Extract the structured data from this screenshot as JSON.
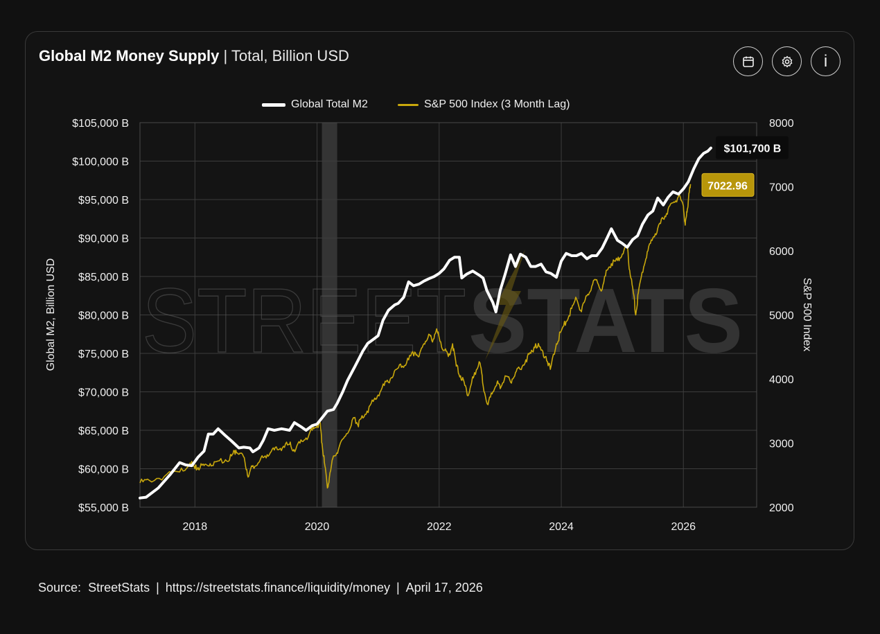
{
  "header": {
    "title_main": "Global M2 Money Supply",
    "title_separator": "|",
    "title_sub": "Total, Billion USD"
  },
  "toolbar": {
    "calendar_icon": "calendar-icon",
    "settings_icon": "gear-icon",
    "info_icon": "info-icon",
    "info_glyph": "i"
  },
  "legend": {
    "m2_label": "Global Total M2",
    "spx_label": "S&P 500 Index (3 Month Lag)"
  },
  "colors": {
    "m2": "#ffffff",
    "spx": "#c9a80c",
    "spx_badge": "#b8960a",
    "grid": "#3d3d3d",
    "recession": "#3a3a3a",
    "watermark": "#5a5a5a"
  },
  "watermark": {
    "left": "STREET",
    "right": "STATS"
  },
  "chart_data": {
    "type": "line",
    "title": "Global M2 Money Supply | Total, Billion USD",
    "xlabel": "",
    "ylabel_left": "Global M2, Billion USD",
    "ylabel_right": "S&P 500 Index",
    "x_ticks": [
      "2018",
      "2020",
      "2022",
      "2024",
      "2026"
    ],
    "x_range": [
      2017.1,
      2027.2
    ],
    "y_left_range": [
      55000,
      105000
    ],
    "y_left_ticks": [
      "$105,000 B",
      "$100,000 B",
      "$95,000 B",
      "$90,000 B",
      "$85,000 B",
      "$80,000 B",
      "$75,000 B",
      "$70,000 B",
      "$65,000 B",
      "$60,000 B",
      "$55,000 B"
    ],
    "y_right_range": [
      2000,
      8000
    ],
    "y_right_ticks": [
      "8000",
      "7000",
      "6000",
      "5000",
      "4000",
      "3000",
      "2000"
    ],
    "shaded_period": [
      2020.08,
      2020.33
    ],
    "series": [
      {
        "name": "Global Total M2",
        "axis": "left",
        "last_value_label": "$101,700 B",
        "points": [
          [
            2017.1,
            56200
          ],
          [
            2017.2,
            56300
          ],
          [
            2017.4,
            57500
          ],
          [
            2017.6,
            59300
          ],
          [
            2017.75,
            60800
          ],
          [
            2017.85,
            60500
          ],
          [
            2017.95,
            60400
          ],
          [
            2018.05,
            61500
          ],
          [
            2018.15,
            62300
          ],
          [
            2018.22,
            64500
          ],
          [
            2018.3,
            64500
          ],
          [
            2018.38,
            65200
          ],
          [
            2018.5,
            64300
          ],
          [
            2018.6,
            63600
          ],
          [
            2018.72,
            62700
          ],
          [
            2018.8,
            62800
          ],
          [
            2018.9,
            62700
          ],
          [
            2018.95,
            62200
          ],
          [
            2019.05,
            62700
          ],
          [
            2019.12,
            63700
          ],
          [
            2019.2,
            65200
          ],
          [
            2019.3,
            65000
          ],
          [
            2019.42,
            65200
          ],
          [
            2019.55,
            65000
          ],
          [
            2019.63,
            66000
          ],
          [
            2019.75,
            65400
          ],
          [
            2019.82,
            65000
          ],
          [
            2019.92,
            65600
          ],
          [
            2020.0,
            65800
          ],
          [
            2020.1,
            66800
          ],
          [
            2020.17,
            67500
          ],
          [
            2020.27,
            67700
          ],
          [
            2020.33,
            68500
          ],
          [
            2020.42,
            70000
          ],
          [
            2020.5,
            71500
          ],
          [
            2020.62,
            73300
          ],
          [
            2020.75,
            75300
          ],
          [
            2020.83,
            76300
          ],
          [
            2020.9,
            76700
          ],
          [
            2021.0,
            77300
          ],
          [
            2021.08,
            79300
          ],
          [
            2021.17,
            80600
          ],
          [
            2021.27,
            81300
          ],
          [
            2021.33,
            81500
          ],
          [
            2021.42,
            82300
          ],
          [
            2021.5,
            84300
          ],
          [
            2021.58,
            83800
          ],
          [
            2021.67,
            84000
          ],
          [
            2021.75,
            84400
          ],
          [
            2021.83,
            84700
          ],
          [
            2021.92,
            85000
          ],
          [
            2022.0,
            85400
          ],
          [
            2022.08,
            86000
          ],
          [
            2022.17,
            87100
          ],
          [
            2022.25,
            87500
          ],
          [
            2022.33,
            87500
          ],
          [
            2022.37,
            84800
          ],
          [
            2022.45,
            85300
          ],
          [
            2022.55,
            85700
          ],
          [
            2022.65,
            85200
          ],
          [
            2022.72,
            84800
          ],
          [
            2022.78,
            83200
          ],
          [
            2022.88,
            81600
          ],
          [
            2022.93,
            80400
          ],
          [
            2023.0,
            83200
          ],
          [
            2023.08,
            85300
          ],
          [
            2023.17,
            87800
          ],
          [
            2023.25,
            86300
          ],
          [
            2023.33,
            87900
          ],
          [
            2023.42,
            87500
          ],
          [
            2023.5,
            86300
          ],
          [
            2023.58,
            86300
          ],
          [
            2023.67,
            86600
          ],
          [
            2023.75,
            85600
          ],
          [
            2023.83,
            85400
          ],
          [
            2023.92,
            84900
          ],
          [
            2024.0,
            87000
          ],
          [
            2024.08,
            88000
          ],
          [
            2024.17,
            87700
          ],
          [
            2024.25,
            87700
          ],
          [
            2024.33,
            88000
          ],
          [
            2024.42,
            87300
          ],
          [
            2024.5,
            87700
          ],
          [
            2024.58,
            87700
          ],
          [
            2024.67,
            88700
          ],
          [
            2024.75,
            90000
          ],
          [
            2024.82,
            91200
          ],
          [
            2024.92,
            89700
          ],
          [
            2025.0,
            89300
          ],
          [
            2025.08,
            88800
          ],
          [
            2025.17,
            89800
          ],
          [
            2025.25,
            90300
          ],
          [
            2025.33,
            91800
          ],
          [
            2025.42,
            93000
          ],
          [
            2025.5,
            93500
          ],
          [
            2025.58,
            95200
          ],
          [
            2025.67,
            94300
          ],
          [
            2025.75,
            95300
          ],
          [
            2025.83,
            96000
          ],
          [
            2025.92,
            95700
          ],
          [
            2026.0,
            96400
          ],
          [
            2026.08,
            97300
          ],
          [
            2026.17,
            99000
          ],
          [
            2026.25,
            100300
          ],
          [
            2026.33,
            101000
          ],
          [
            2026.4,
            101300
          ],
          [
            2026.45,
            101700
          ]
        ]
      },
      {
        "name": "S&P 500 Index (3 Month Lag)",
        "axis": "right",
        "last_value_label": "7022.96",
        "points": [
          [
            2017.1,
            2380
          ],
          [
            2017.25,
            2420
          ],
          [
            2017.5,
            2480
          ],
          [
            2017.75,
            2550
          ],
          [
            2017.92,
            2690
          ],
          [
            2018.0,
            2600
          ],
          [
            2018.05,
            2620
          ],
          [
            2018.15,
            2650
          ],
          [
            2018.25,
            2680
          ],
          [
            2018.35,
            2710
          ],
          [
            2018.5,
            2740
          ],
          [
            2018.6,
            2800
          ],
          [
            2018.67,
            2890
          ],
          [
            2018.75,
            2840
          ],
          [
            2018.82,
            2700
          ],
          [
            2018.88,
            2480
          ],
          [
            2018.95,
            2650
          ],
          [
            2019.05,
            2700
          ],
          [
            2019.15,
            2800
          ],
          [
            2019.25,
            2870
          ],
          [
            2019.35,
            2900
          ],
          [
            2019.45,
            2950
          ],
          [
            2019.55,
            2980
          ],
          [
            2019.62,
            2900
          ],
          [
            2019.72,
            3000
          ],
          [
            2019.82,
            3080
          ],
          [
            2019.92,
            3200
          ],
          [
            2020.0,
            3270
          ],
          [
            2020.05,
            3320
          ],
          [
            2020.08,
            3000
          ],
          [
            2020.12,
            2700
          ],
          [
            2020.17,
            2300
          ],
          [
            2020.2,
            2450
          ],
          [
            2020.27,
            2800
          ],
          [
            2020.35,
            2900
          ],
          [
            2020.45,
            3100
          ],
          [
            2020.55,
            3250
          ],
          [
            2020.62,
            3400
          ],
          [
            2020.67,
            3280
          ],
          [
            2020.72,
            3380
          ],
          [
            2020.82,
            3500
          ],
          [
            2020.92,
            3650
          ],
          [
            2021.0,
            3750
          ],
          [
            2021.1,
            3900
          ],
          [
            2021.2,
            4000
          ],
          [
            2021.3,
            4150
          ],
          [
            2021.4,
            4200
          ],
          [
            2021.5,
            4300
          ],
          [
            2021.6,
            4420
          ],
          [
            2021.67,
            4350
          ],
          [
            2021.75,
            4550
          ],
          [
            2021.83,
            4700
          ],
          [
            2021.88,
            4600
          ],
          [
            2021.95,
            4750
          ],
          [
            2022.0,
            4650
          ],
          [
            2022.08,
            4450
          ],
          [
            2022.15,
            4350
          ],
          [
            2022.22,
            4550
          ],
          [
            2022.28,
            4200
          ],
          [
            2022.35,
            4050
          ],
          [
            2022.42,
            3900
          ],
          [
            2022.48,
            3750
          ],
          [
            2022.52,
            3900
          ],
          [
            2022.58,
            4100
          ],
          [
            2022.67,
            4250
          ],
          [
            2022.72,
            3900
          ],
          [
            2022.8,
            3600
          ],
          [
            2022.88,
            3800
          ],
          [
            2022.95,
            3950
          ],
          [
            2023.0,
            3850
          ],
          [
            2023.08,
            4050
          ],
          [
            2023.17,
            3950
          ],
          [
            2023.25,
            4100
          ],
          [
            2023.33,
            4150
          ],
          [
            2023.42,
            4300
          ],
          [
            2023.5,
            4400
          ],
          [
            2023.58,
            4550
          ],
          [
            2023.67,
            4450
          ],
          [
            2023.75,
            4350
          ],
          [
            2023.82,
            4150
          ],
          [
            2023.92,
            4550
          ],
          [
            2024.0,
            4750
          ],
          [
            2024.08,
            4900
          ],
          [
            2024.17,
            5100
          ],
          [
            2024.25,
            5250
          ],
          [
            2024.33,
            5050
          ],
          [
            2024.42,
            5300
          ],
          [
            2024.5,
            5450
          ],
          [
            2024.58,
            5550
          ],
          [
            2024.67,
            5400
          ],
          [
            2024.75,
            5700
          ],
          [
            2024.82,
            5800
          ],
          [
            2024.92,
            5850
          ],
          [
            2025.0,
            5950
          ],
          [
            2025.08,
            6050
          ],
          [
            2025.12,
            5700
          ],
          [
            2025.18,
            5350
          ],
          [
            2025.22,
            5000
          ],
          [
            2025.27,
            5400
          ],
          [
            2025.35,
            5750
          ],
          [
            2025.42,
            6000
          ],
          [
            2025.5,
            6200
          ],
          [
            2025.58,
            6350
          ],
          [
            2025.67,
            6500
          ],
          [
            2025.75,
            6650
          ],
          [
            2025.83,
            6750
          ],
          [
            2025.92,
            6850
          ],
          [
            2026.0,
            6700
          ],
          [
            2026.03,
            6400
          ],
          [
            2026.06,
            6600
          ],
          [
            2026.09,
            6900
          ],
          [
            2026.12,
            7023
          ]
        ]
      }
    ]
  },
  "footer": {
    "source_label": "Source:",
    "source_name": "StreetStats",
    "url": "https://streetstats.finance/liquidity/money",
    "date": "April 17, 2026"
  }
}
